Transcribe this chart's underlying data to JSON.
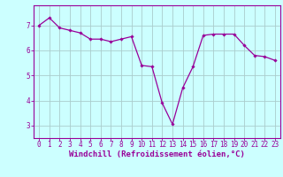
{
  "x": [
    0,
    1,
    2,
    3,
    4,
    5,
    6,
    7,
    8,
    9,
    10,
    11,
    12,
    13,
    14,
    15,
    16,
    17,
    18,
    19,
    20,
    21,
    22,
    23
  ],
  "y": [
    7.0,
    7.3,
    6.9,
    6.8,
    6.7,
    6.45,
    6.45,
    6.35,
    6.45,
    6.55,
    5.4,
    5.35,
    3.9,
    3.05,
    4.5,
    5.35,
    6.6,
    6.65,
    6.65,
    6.65,
    6.2,
    5.8,
    5.75,
    5.6
  ],
  "line_color": "#990099",
  "marker": "D",
  "marker_size": 1.8,
  "line_width": 0.9,
  "bg_color": "#ccffff",
  "grid_color": "#aacccc",
  "xlabel": "Windchill (Refroidissement éolien,°C)",
  "xlabel_color": "#990099",
  "tick_color": "#990099",
  "spine_color": "#990099",
  "ylim": [
    2.5,
    7.8
  ],
  "xlim": [
    -0.5,
    23.5
  ],
  "yticks": [
    3,
    4,
    5,
    6,
    7
  ],
  "xticks": [
    0,
    1,
    2,
    3,
    4,
    5,
    6,
    7,
    8,
    9,
    10,
    11,
    12,
    13,
    14,
    15,
    16,
    17,
    18,
    19,
    20,
    21,
    22,
    23
  ],
  "xtick_labels": [
    "0",
    "1",
    "2",
    "3",
    "4",
    "5",
    "6",
    "7",
    "8",
    "9",
    "10",
    "11",
    "12",
    "13",
    "14",
    "15",
    "16",
    "17",
    "18",
    "19",
    "20",
    "21",
    "22",
    "23"
  ],
  "tick_fontsize": 5.5,
  "xlabel_fontsize": 6.5
}
